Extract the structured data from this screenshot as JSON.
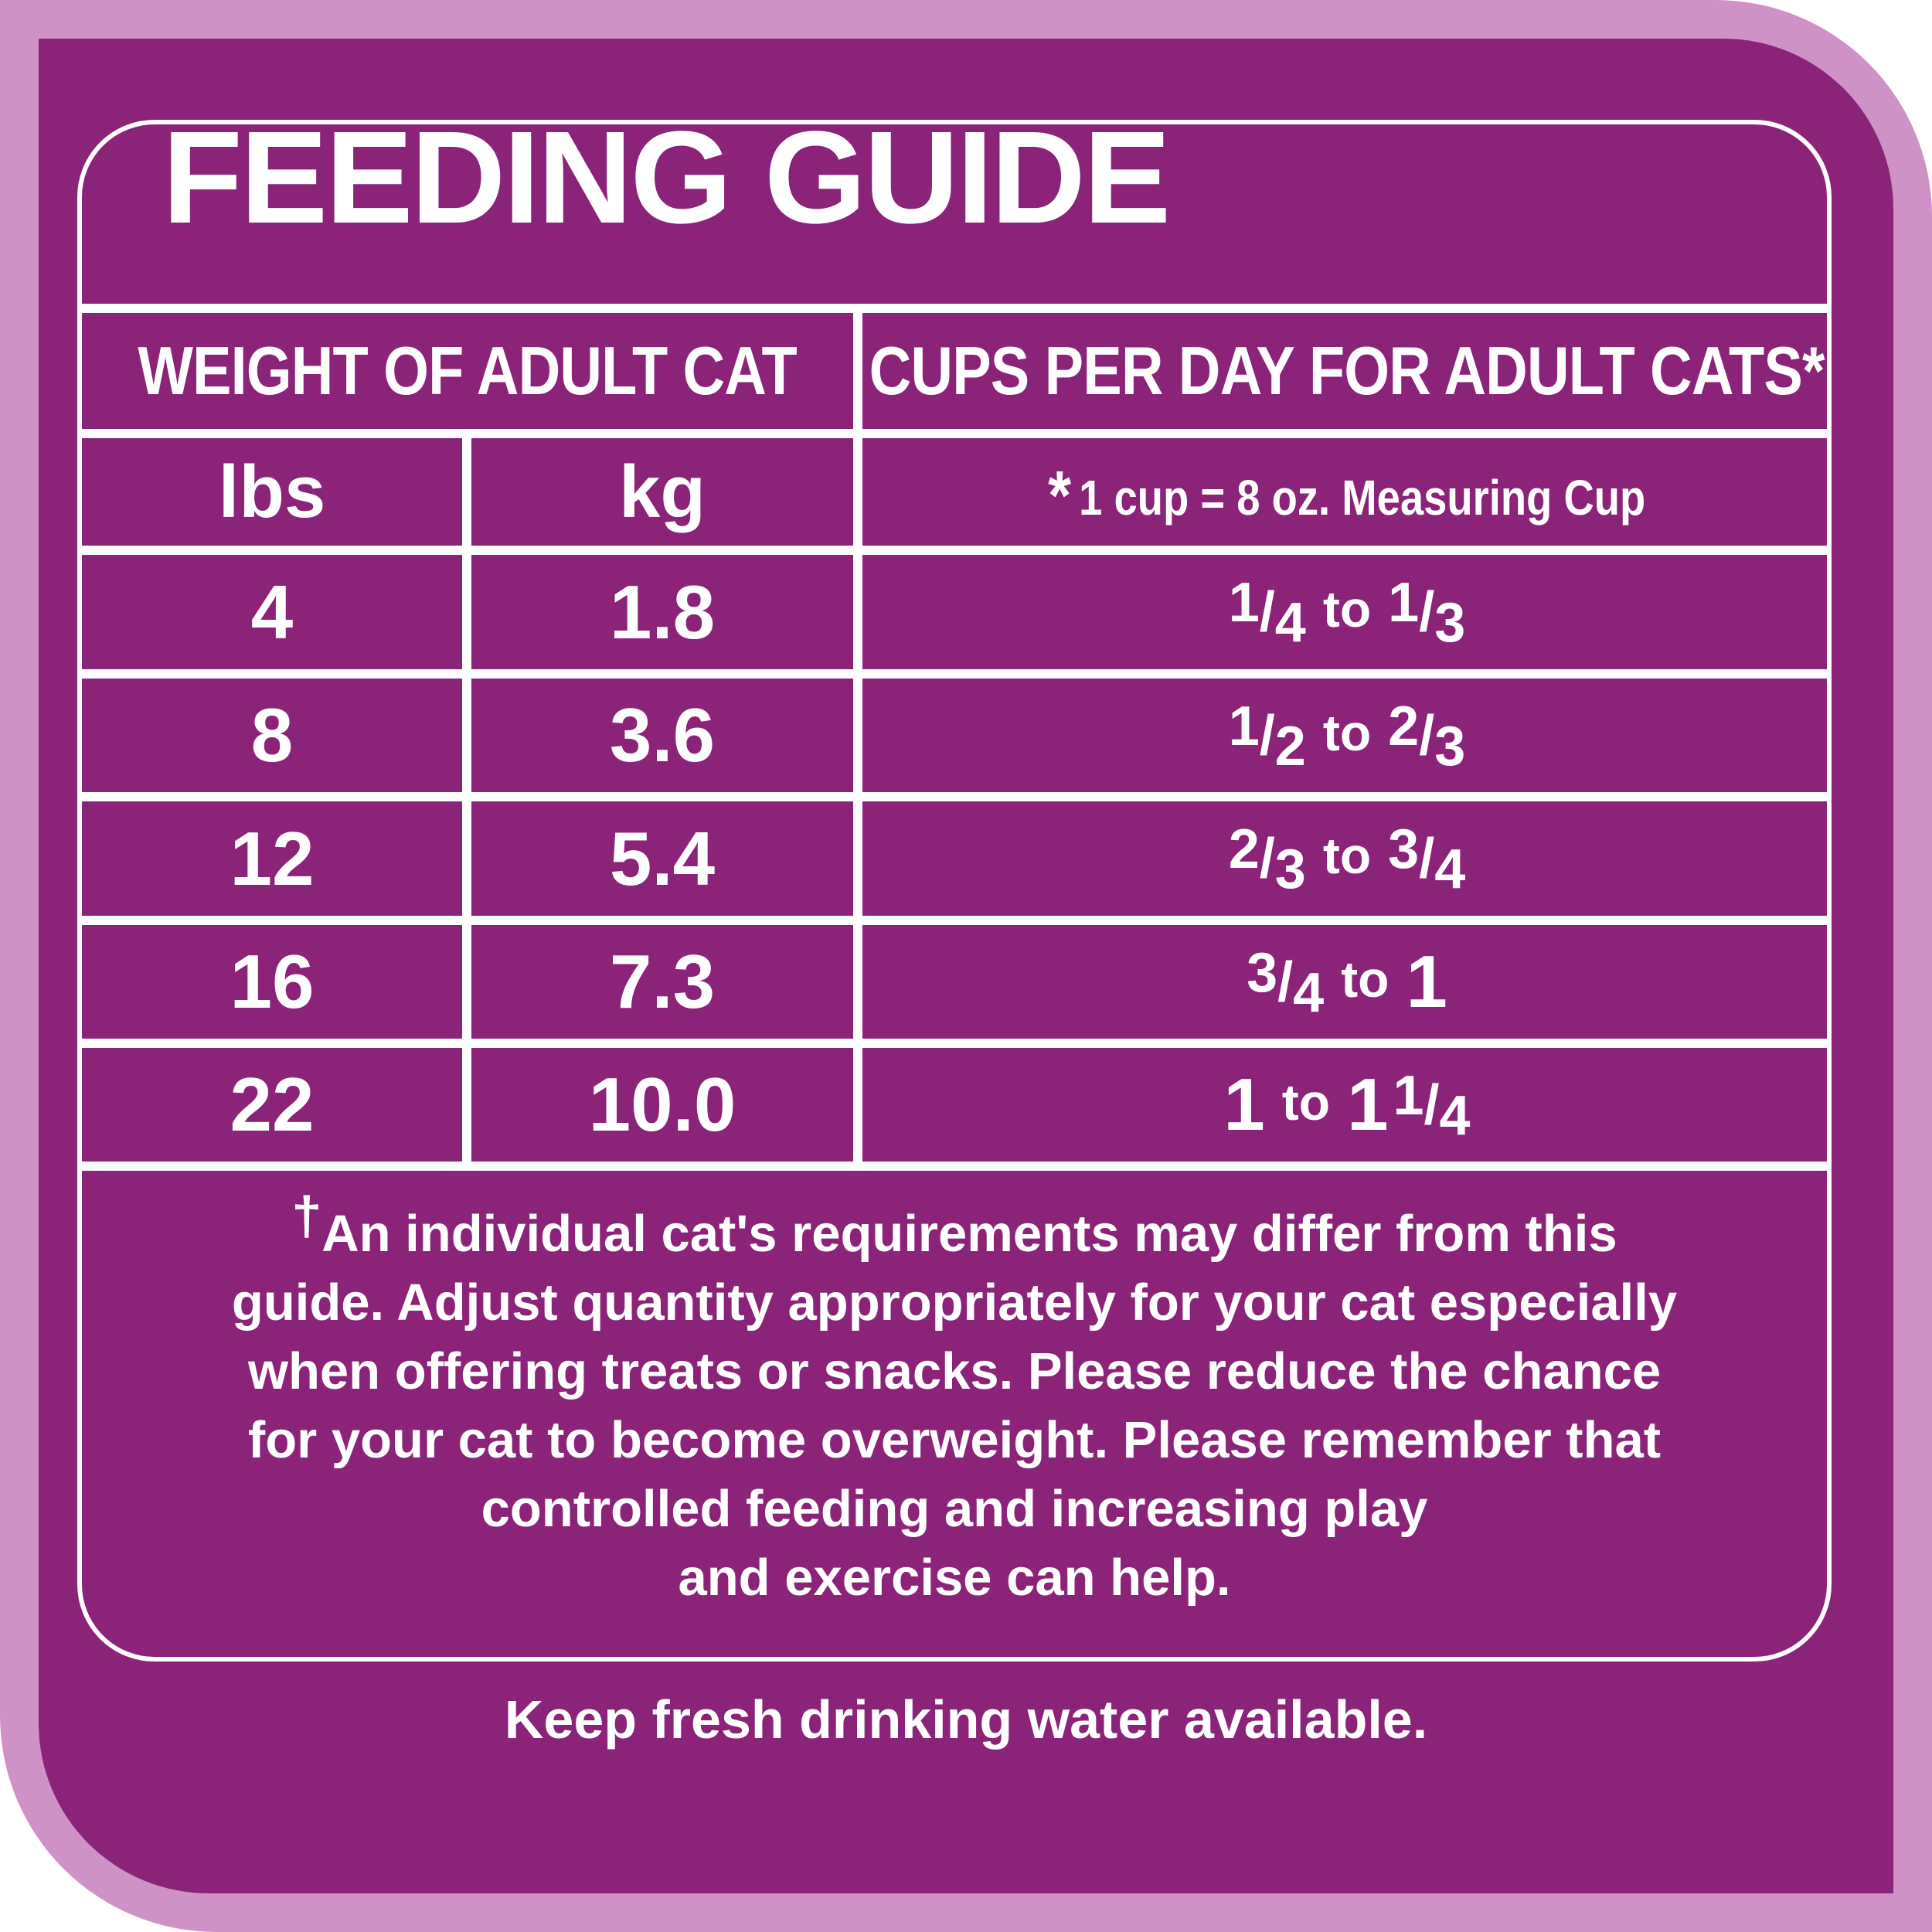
{
  "title": "FEEDING GUIDE",
  "headers": {
    "weight": "WEIGHT OF ADULT CAT",
    "cups": "CUPS PER DAY FOR ADULT CATS*",
    "lbs": "lbs",
    "kg": "kg",
    "cup_note_star": "*",
    "cup_note": "1 cup = 8 oz. Measuring Cup"
  },
  "rows": [
    {
      "lbs": "4",
      "kg": "1.8",
      "cups": {
        "a_n": "1",
        "a_d": "4",
        "to": "to",
        "b_n": "1",
        "b_d": "3"
      }
    },
    {
      "lbs": "8",
      "kg": "3.6",
      "cups": {
        "a_n": "1",
        "a_d": "2",
        "to": "to",
        "b_n": "2",
        "b_d": "3"
      }
    },
    {
      "lbs": "12",
      "kg": "5.4",
      "cups": {
        "a_n": "2",
        "a_d": "3",
        "to": "to",
        "b_n": "3",
        "b_d": "4"
      }
    },
    {
      "lbs": "16",
      "kg": "7.3",
      "cups": {
        "a_n": "3",
        "a_d": "4",
        "to": "to",
        "b_whole": "1"
      }
    },
    {
      "lbs": "22",
      "kg": "10.0",
      "cups": {
        "a_whole": "1",
        "to": "to",
        "b_whole": "1",
        "b_n": "1",
        "b_d": "4"
      }
    }
  ],
  "footnote": {
    "dagger": "†",
    "lines": [
      "An individual cat's requirements may differ from this",
      "guide. Adjust quantity appropriately for your cat especially",
      "when offering treats or snacks. Please reduce the chance",
      "for your cat to become overweight. Please remember that",
      "controlled feeding and increasing play",
      "and exercise can help."
    ]
  },
  "water_note": "Keep fresh drinking water available.",
  "colors": {
    "outer": "#cf92c7",
    "panel": "#8b2478",
    "text": "#ffffff"
  }
}
